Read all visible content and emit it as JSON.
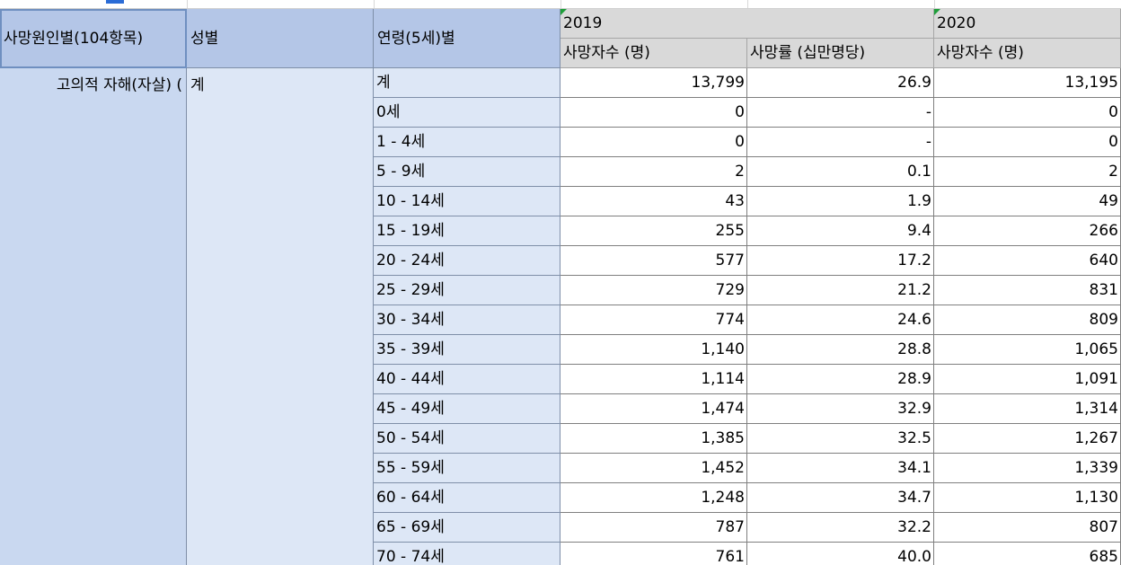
{
  "headers": {
    "cause": "사망원인별(104항목)",
    "sex": "성별",
    "age": "연령(5세)별",
    "year1": "2019",
    "year2": "2020",
    "deaths": "사망자수 (명)",
    "rate": "사망률 (십만명당)",
    "deaths2": "사망자수 (명)"
  },
  "row_labels": {
    "cause": "고의적 자해(자살) (",
    "sex": "계"
  },
  "rows": [
    {
      "age": "계",
      "d2019": "13,799",
      "r2019": "26.9",
      "d2020": "13,195"
    },
    {
      "age": "0세",
      "d2019": "0",
      "r2019": "-",
      "d2020": "0"
    },
    {
      "age": "1 - 4세",
      "d2019": "0",
      "r2019": "-",
      "d2020": "0"
    },
    {
      "age": "5 - 9세",
      "d2019": "2",
      "r2019": "0.1",
      "d2020": "2"
    },
    {
      "age": "10 - 14세",
      "d2019": "43",
      "r2019": "1.9",
      "d2020": "49"
    },
    {
      "age": "15 - 19세",
      "d2019": "255",
      "r2019": "9.4",
      "d2020": "266"
    },
    {
      "age": "20 - 24세",
      "d2019": "577",
      "r2019": "17.2",
      "d2020": "640"
    },
    {
      "age": "25 - 29세",
      "d2019": "729",
      "r2019": "21.2",
      "d2020": "831"
    },
    {
      "age": "30 - 34세",
      "d2019": "774",
      "r2019": "24.6",
      "d2020": "809"
    },
    {
      "age": "35 - 39세",
      "d2019": "1,140",
      "r2019": "28.8",
      "d2020": "1,065"
    },
    {
      "age": "40 - 44세",
      "d2019": "1,114",
      "r2019": "28.9",
      "d2020": "1,091"
    },
    {
      "age": "45 - 49세",
      "d2019": "1,474",
      "r2019": "32.9",
      "d2020": "1,314"
    },
    {
      "age": "50 - 54세",
      "d2019": "1,385",
      "r2019": "32.5",
      "d2020": "1,267"
    },
    {
      "age": "55 - 59세",
      "d2019": "1,452",
      "r2019": "34.1",
      "d2020": "1,339"
    },
    {
      "age": "60 - 64세",
      "d2019": "1,248",
      "r2019": "34.7",
      "d2020": "1,130"
    },
    {
      "age": "65 - 69세",
      "d2019": "787",
      "r2019": "32.2",
      "d2020": "807"
    },
    {
      "age": "70 - 74세",
      "d2019": "761",
      "r2019": "40.0",
      "d2020": "685"
    }
  ],
  "colors": {
    "header_blue": "#b4c6e7",
    "row_header_blue": "#dde7f6",
    "header_gray": "#d9d9d9",
    "green_marker": "#1e9e3a"
  }
}
